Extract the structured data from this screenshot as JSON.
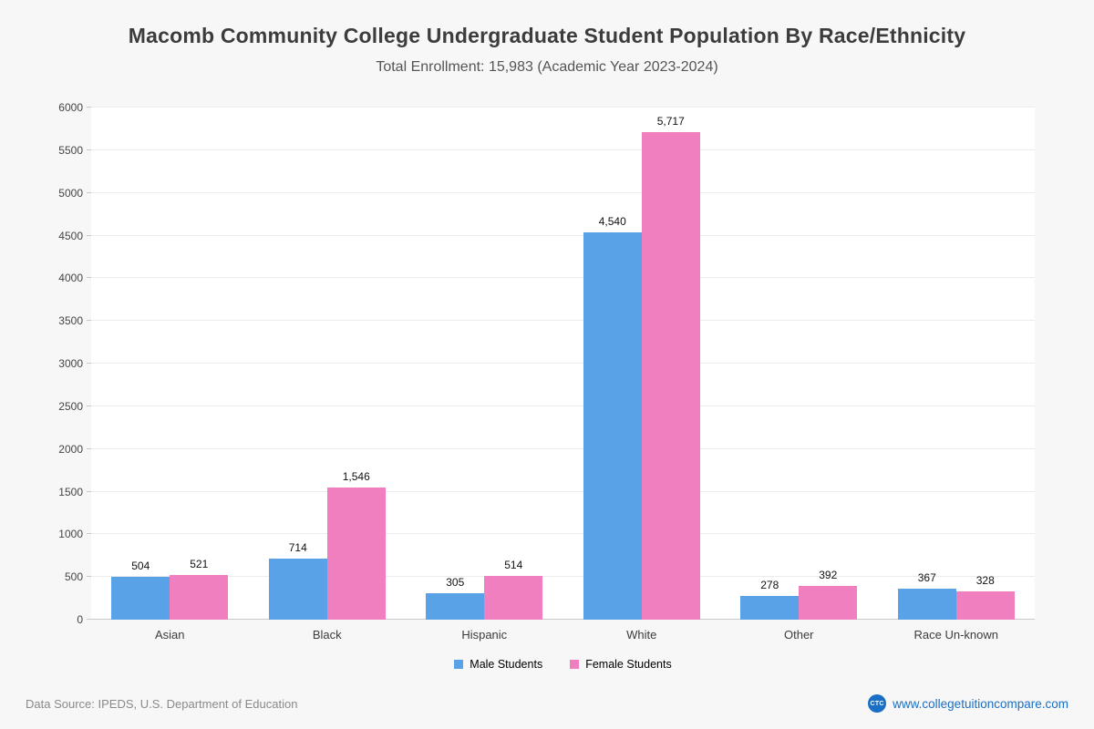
{
  "title": "Macomb Community College Undergraduate Student Population By Race/Ethnicity",
  "subtitle": "Total Enrollment: 15,983 (Academic Year 2023-2024)",
  "footer": {
    "source": "Data Source: IPEDS, U.S. Department of Education",
    "site": "www.collegetuitioncompare.com",
    "logo_text": "CTC"
  },
  "colors": {
    "male": "#5aa2e8",
    "female": "#f07fc0",
    "link_blue": "#1a6fc4"
  },
  "chart_data": {
    "type": "bar",
    "categories": [
      "Asian",
      "Black",
      "Hispanic",
      "White",
      "Other",
      "Race Un-known"
    ],
    "series": [
      {
        "name": "Male Students",
        "color": "#5aa2e8",
        "values": [
          504,
          714,
          305,
          4540,
          278,
          367
        ]
      },
      {
        "name": "Female Students",
        "color": "#f07fc0",
        "values": [
          521,
          1546,
          514,
          5717,
          392,
          328
        ]
      }
    ],
    "title": "Macomb Community College Undergraduate Student Population By Race/Ethnicity",
    "subtitle": "Total Enrollment: 15,983 (Academic Year 2023-2024)",
    "xlabel": "",
    "ylabel": "",
    "ylim": [
      0,
      6000
    ],
    "ytick_step": 500,
    "grid": true,
    "legend_position": "bottom"
  }
}
